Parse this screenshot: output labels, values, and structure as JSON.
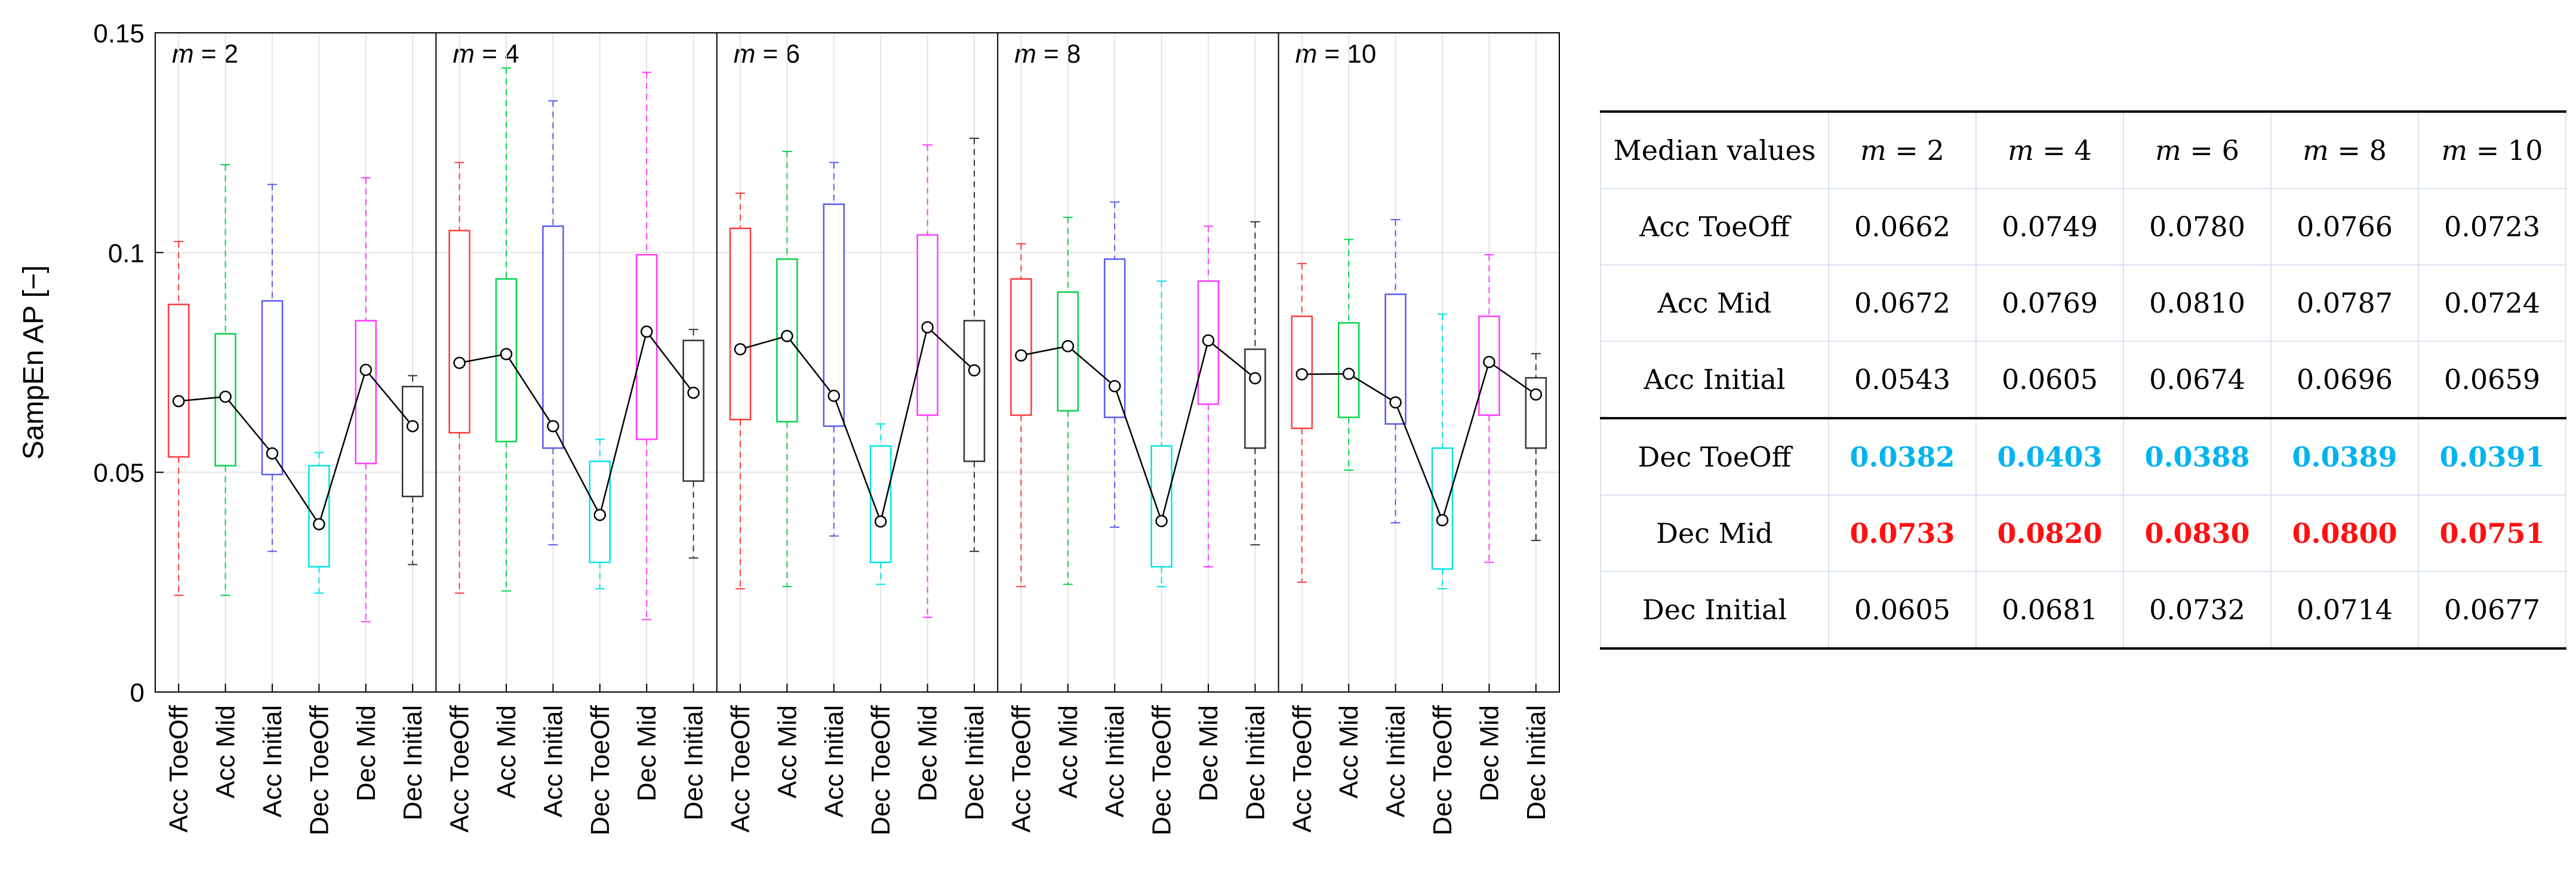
{
  "chart_data": {
    "type": "boxplot",
    "ylabel": "SampEn AP [−]",
    "ylim": [
      0,
      0.15
    ],
    "yticks": [
      0,
      0.05,
      0.1,
      0.15
    ],
    "ytick_labels": [
      "0",
      "0.05",
      "0.1",
      "0.15"
    ],
    "grid": true,
    "categories": [
      "Acc ToeOff",
      "Acc Mid",
      "Acc Initial",
      "Dec ToeOff",
      "Dec Mid",
      "Dec Initial"
    ],
    "category_colors": [
      "#ff3b3b",
      "#00d44a",
      "#5a5af0",
      "#00e5e5",
      "#ff3bff",
      "#333333"
    ],
    "median_line_color": "#000000",
    "panels": [
      {
        "var": "m",
        "label": "= 2",
        "boxes": [
          {
            "min": 0.022,
            "q1": 0.0535,
            "median": 0.0662,
            "q3": 0.0882,
            "max": 0.1025
          },
          {
            "min": 0.022,
            "q1": 0.0515,
            "median": 0.0672,
            "q3": 0.0815,
            "max": 0.12
          },
          {
            "min": 0.032,
            "q1": 0.0495,
            "median": 0.0543,
            "q3": 0.089,
            "max": 0.1155
          },
          {
            "min": 0.0225,
            "q1": 0.0285,
            "median": 0.0382,
            "q3": 0.0515,
            "max": 0.0545
          },
          {
            "min": 0.016,
            "q1": 0.052,
            "median": 0.0733,
            "q3": 0.0845,
            "max": 0.117
          },
          {
            "min": 0.029,
            "q1": 0.0445,
            "median": 0.0605,
            "q3": 0.0695,
            "max": 0.072
          }
        ]
      },
      {
        "var": "m",
        "label": "= 4",
        "boxes": [
          {
            "min": 0.0225,
            "q1": 0.059,
            "median": 0.0749,
            "q3": 0.105,
            "max": 0.1205
          },
          {
            "min": 0.023,
            "q1": 0.057,
            "median": 0.0769,
            "q3": 0.094,
            "max": 0.142
          },
          {
            "min": 0.0335,
            "q1": 0.0555,
            "median": 0.0605,
            "q3": 0.106,
            "max": 0.1345
          },
          {
            "min": 0.0235,
            "q1": 0.0295,
            "median": 0.0403,
            "q3": 0.0525,
            "max": 0.0575
          },
          {
            "min": 0.0165,
            "q1": 0.0575,
            "median": 0.082,
            "q3": 0.0995,
            "max": 0.141
          },
          {
            "min": 0.0305,
            "q1": 0.048,
            "median": 0.0681,
            "q3": 0.08,
            "max": 0.0825
          }
        ]
      },
      {
        "var": "m",
        "label": "= 6",
        "boxes": [
          {
            "min": 0.0235,
            "q1": 0.062,
            "median": 0.078,
            "q3": 0.1055,
            "max": 0.1135
          },
          {
            "min": 0.024,
            "q1": 0.0615,
            "median": 0.081,
            "q3": 0.0985,
            "max": 0.123
          },
          {
            "min": 0.0355,
            "q1": 0.0605,
            "median": 0.0674,
            "q3": 0.111,
            "max": 0.1205
          },
          {
            "min": 0.0245,
            "q1": 0.0295,
            "median": 0.0388,
            "q3": 0.056,
            "max": 0.061
          },
          {
            "min": 0.017,
            "q1": 0.063,
            "median": 0.083,
            "q3": 0.104,
            "max": 0.1245
          },
          {
            "min": 0.032,
            "q1": 0.0525,
            "median": 0.0732,
            "q3": 0.0845,
            "max": 0.126
          }
        ]
      },
      {
        "var": "m",
        "label": "= 8",
        "boxes": [
          {
            "min": 0.024,
            "q1": 0.063,
            "median": 0.0766,
            "q3": 0.094,
            "max": 0.102
          },
          {
            "min": 0.0245,
            "q1": 0.064,
            "median": 0.0787,
            "q3": 0.091,
            "max": 0.108
          },
          {
            "min": 0.0375,
            "q1": 0.0625,
            "median": 0.0696,
            "q3": 0.0985,
            "max": 0.1115
          },
          {
            "min": 0.024,
            "q1": 0.0285,
            "median": 0.0389,
            "q3": 0.056,
            "max": 0.0935
          },
          {
            "min": 0.0285,
            "q1": 0.0655,
            "median": 0.08,
            "q3": 0.0935,
            "max": 0.106
          },
          {
            "min": 0.0335,
            "q1": 0.0555,
            "median": 0.0714,
            "q3": 0.078,
            "max": 0.107
          }
        ]
      },
      {
        "var": "m",
        "label": "= 10",
        "boxes": [
          {
            "min": 0.025,
            "q1": 0.06,
            "median": 0.0723,
            "q3": 0.0855,
            "max": 0.0975
          },
          {
            "min": 0.0505,
            "q1": 0.0625,
            "median": 0.0724,
            "q3": 0.084,
            "max": 0.103
          },
          {
            "min": 0.0385,
            "q1": 0.061,
            "median": 0.0659,
            "q3": 0.0905,
            "max": 0.1075
          },
          {
            "min": 0.0235,
            "q1": 0.028,
            "median": 0.0391,
            "q3": 0.0555,
            "max": 0.086
          },
          {
            "min": 0.0295,
            "q1": 0.063,
            "median": 0.0751,
            "q3": 0.0855,
            "max": 0.0995
          },
          {
            "min": 0.0345,
            "q1": 0.0555,
            "median": 0.0677,
            "q3": 0.0715,
            "max": 0.077
          }
        ]
      }
    ]
  },
  "table": {
    "header": [
      "Median values",
      "m",
      "m",
      "m",
      "m",
      "m"
    ],
    "header_suffix": [
      "",
      " = 2",
      " = 4",
      " = 6",
      " = 8",
      " = 10"
    ],
    "rows": [
      {
        "label": "Acc ToeOff",
        "values": [
          "0.0662",
          "0.0749",
          "0.0780",
          "0.0766",
          "0.0723"
        ],
        "color": "#000000"
      },
      {
        "label": "Acc Mid",
        "values": [
          "0.0672",
          "0.0769",
          "0.0810",
          "0.0787",
          "0.0724"
        ],
        "color": "#000000"
      },
      {
        "label": "Acc Initial",
        "values": [
          "0.0543",
          "0.0605",
          "0.0674",
          "0.0696",
          "0.0659"
        ],
        "color": "#000000"
      },
      {
        "label": "Dec ToeOff",
        "values": [
          "0.0382",
          "0.0403",
          "0.0388",
          "0.0389",
          "0.0391"
        ],
        "color": "#00b4f0"
      },
      {
        "label": "Dec Mid",
        "values": [
          "0.0733",
          "0.0820",
          "0.0830",
          "0.0800",
          "0.0751"
        ],
        "color": "#ff1010"
      },
      {
        "label": "Dec Initial",
        "values": [
          "0.0605",
          "0.0681",
          "0.0732",
          "0.0714",
          "0.0677"
        ],
        "color": "#000000"
      }
    ]
  }
}
